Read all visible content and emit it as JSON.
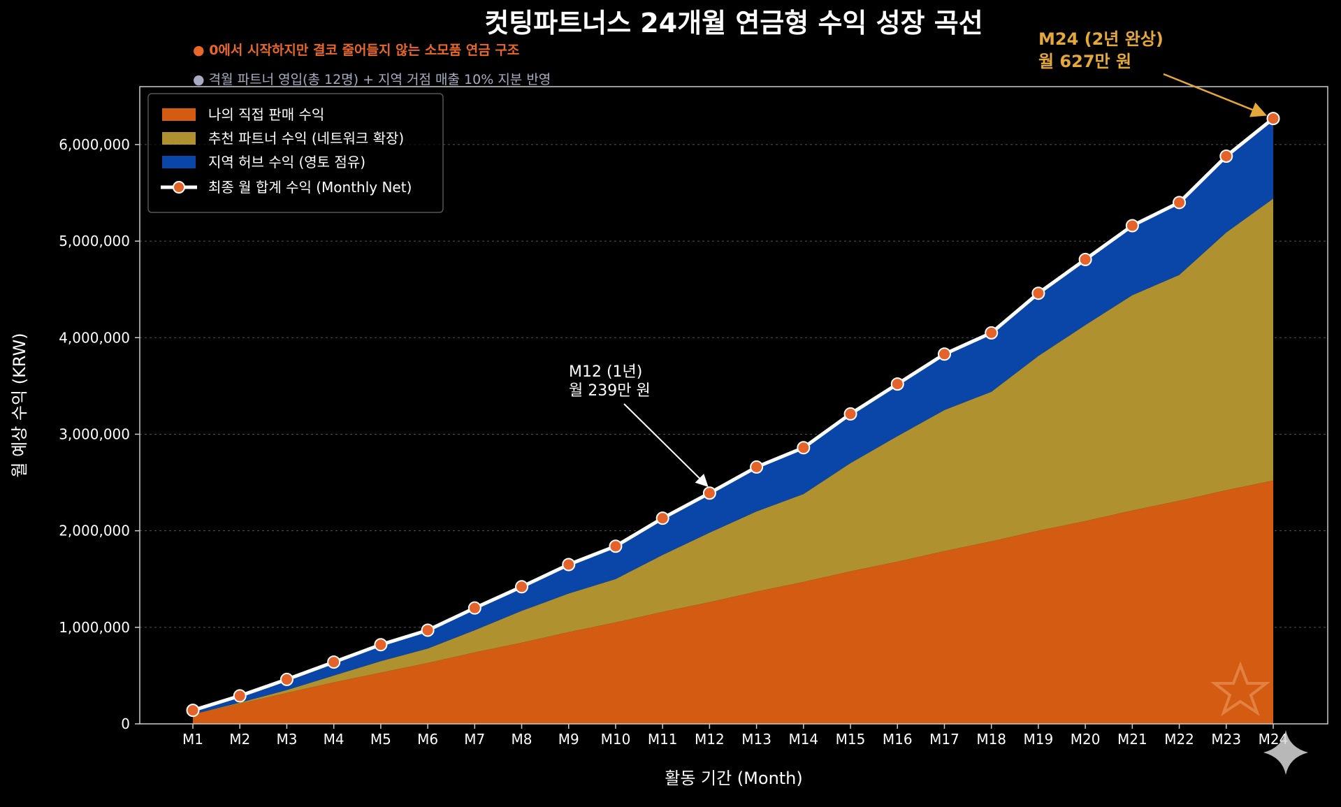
{
  "chart_data": {
    "type": "area",
    "stacked": true,
    "title": "컷팅파트너스 24개월 연금형 수익 성장 곡선",
    "subtitle_lines": [
      {
        "text": "● 0에서 시작하지만 결코 줄어들지 않는 소모품 연금 구조",
        "color": "#e8672a"
      },
      {
        "text": "● 격월 파트너 영입(총 12명) + 지역 거점 매출 10% 지분 반영",
        "color": "#a7acc2"
      }
    ],
    "xlabel": "활동 기간 (Month)",
    "ylabel": "월 예상 수익 (KRW)",
    "ylim": [
      0,
      6600000
    ],
    "yticks": [
      0,
      1000000,
      2000000,
      3000000,
      4000000,
      5000000,
      6000000
    ],
    "ytick_labels": [
      "0",
      "1,000,000",
      "2,000,000",
      "3,000,000",
      "4,000,000",
      "5,000,000",
      "6,000,000"
    ],
    "grid": "horizontal dashed",
    "legend_position": "top-left",
    "categories": [
      "M1",
      "M2",
      "M3",
      "M4",
      "M5",
      "M6",
      "M7",
      "M8",
      "M9",
      "M10",
      "M11",
      "M12",
      "M13",
      "M14",
      "M15",
      "M16",
      "M17",
      "M18",
      "M19",
      "M20",
      "M21",
      "M22",
      "M23",
      "M24"
    ],
    "series": [
      {
        "name": "나의 직접 판매 수익",
        "color": "#d35b12",
        "values": [
          100000,
          210000,
          320000,
          430000,
          530000,
          630000,
          740000,
          840000,
          950000,
          1050000,
          1160000,
          1260000,
          1370000,
          1470000,
          1580000,
          1680000,
          1790000,
          1890000,
          2000000,
          2100000,
          2210000,
          2310000,
          2420000,
          2520000
        ]
      },
      {
        "name": "추천 파트너 수익 (네트워크 확장)",
        "color": "#b0912f",
        "values": [
          0,
          10000,
          30000,
          70000,
          120000,
          150000,
          230000,
          330000,
          400000,
          450000,
          590000,
          720000,
          830000,
          910000,
          1120000,
          1300000,
          1460000,
          1550000,
          1810000,
          2030000,
          2230000,
          2340000,
          2670000,
          2920000
        ]
      },
      {
        "name": "지역 허브 수익 (영토 점유)",
        "color": "#0a46a8",
        "values": [
          40000,
          70000,
          110000,
          140000,
          170000,
          190000,
          230000,
          250000,
          300000,
          340000,
          380000,
          410000,
          460000,
          480000,
          510000,
          540000,
          580000,
          610000,
          650000,
          680000,
          720000,
          750000,
          790000,
          830000
        ]
      }
    ],
    "total_line": {
      "name": "최종 월 합계 수익 (Monthly Net)",
      "line_color": "#ffffff",
      "marker_color": "#e3632a",
      "values": [
        140000,
        290000,
        460000,
        640000,
        820000,
        970000,
        1200000,
        1420000,
        1650000,
        1840000,
        2130000,
        2390000,
        2660000,
        2860000,
        3210000,
        3520000,
        3830000,
        4050000,
        4460000,
        4810000,
        5160000,
        5400000,
        5880000,
        6270000
      ]
    },
    "annotations": [
      {
        "line1": "M12 (1년)",
        "line2": "월 239만 원",
        "category": "M12",
        "value": 2390000,
        "color": "#ffffff"
      },
      {
        "line1": "M24 (2년 완상)",
        "line2": "월 627만 원",
        "category": "M24",
        "value": 6270000,
        "color": "#e5a83a"
      }
    ],
    "colors": {
      "background": "#000000",
      "axis": "#cccccc",
      "grid": "#555555",
      "text": "#ffffff"
    }
  },
  "decorations": {
    "star_icon": "star-outline-icon",
    "sparkle_icon": "sparkle-icon"
  }
}
